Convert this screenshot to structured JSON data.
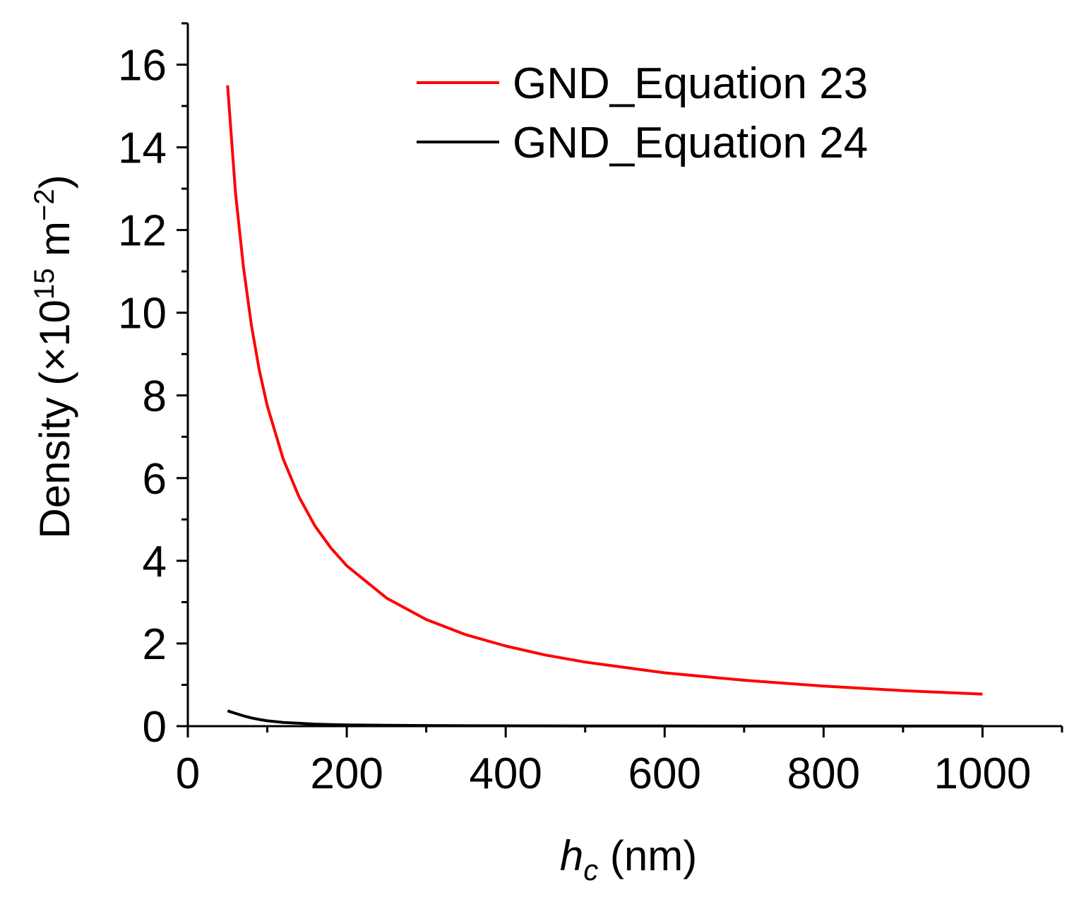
{
  "chart_data": {
    "type": "line",
    "title": "",
    "xlabel": {
      "main": "h",
      "sub": "c",
      "unit": " (nm)"
    },
    "ylabel": {
      "pre": "Density (×10",
      "exp1": "15",
      "mid": " m",
      "exp2": "−2",
      "post": ")"
    },
    "xlim": [
      0,
      1100
    ],
    "ylim": [
      0,
      17
    ],
    "xticks": [
      0,
      200,
      400,
      600,
      800,
      1000
    ],
    "yticks": [
      0,
      2,
      4,
      6,
      8,
      10,
      12,
      14,
      16
    ],
    "grid": false,
    "legend_position": "top-right",
    "x": [
      50,
      60,
      70,
      80,
      90,
      100,
      120,
      140,
      160,
      180,
      200,
      250,
      300,
      350,
      400,
      450,
      500,
      600,
      700,
      800,
      900,
      1000
    ],
    "series": [
      {
        "name": "GND_Equation 23",
        "color": "#ff0000",
        "values": [
          15.5,
          12.9,
          11.1,
          9.7,
          8.6,
          7.75,
          6.46,
          5.54,
          4.84,
          4.31,
          3.88,
          3.1,
          2.58,
          2.21,
          1.94,
          1.72,
          1.55,
          1.29,
          1.11,
          0.97,
          0.86,
          0.775
        ]
      },
      {
        "name": "GND_Equation 24",
        "color": "#000000",
        "values": [
          0.37,
          0.31,
          0.25,
          0.2,
          0.16,
          0.13,
          0.09,
          0.07,
          0.05,
          0.04,
          0.03,
          0.02,
          0.015,
          0.01,
          0.008,
          0.006,
          0.005,
          0.003,
          0.002,
          0.0015,
          0.001,
          0.001
        ]
      }
    ]
  }
}
